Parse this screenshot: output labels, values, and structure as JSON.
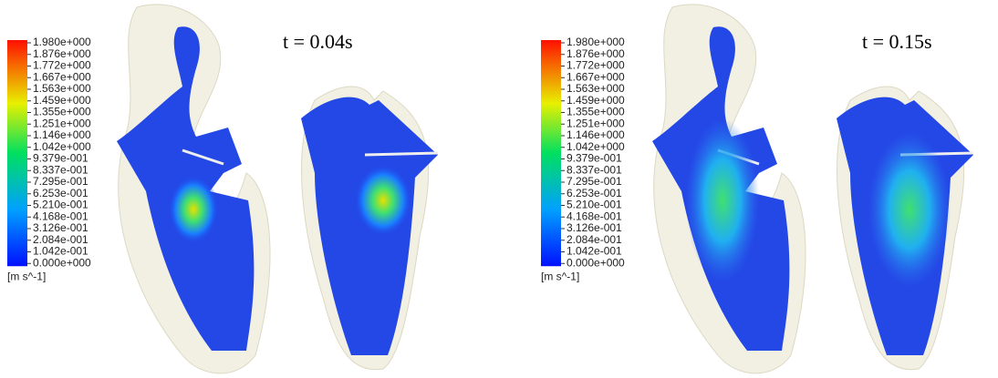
{
  "panels": [
    {
      "time": "t = 0.04s",
      "colorbar": {
        "labels": [
          "1.980e+000",
          "1.876e+000",
          "1.772e+000",
          "1.667e+000",
          "1.563e+000",
          "1.459e+000",
          "1.355e+000",
          "1.251e+000",
          "1.146e+000",
          "1.042e+000",
          "9.379e-001",
          "8.337e-001",
          "7.295e-001",
          "6.253e-001",
          "5.210e-001",
          "4.168e-001",
          "3.126e-001",
          "2.084e-001",
          "1.042e-001",
          "0.000e+000"
        ],
        "unit": "[m s^-1]"
      }
    },
    {
      "time": "t = 0.15s",
      "colorbar": {
        "labels": [
          "1.980e+000",
          "1.876e+000",
          "1.772e+000",
          "1.667e+000",
          "1.563e+000",
          "1.459e+000",
          "1.355e+000",
          "1.251e+000",
          "1.146e+000",
          "1.042e+000",
          "9.379e-001",
          "8.337e-001",
          "7.295e-001",
          "6.253e-001",
          "5.210e-001",
          "4.168e-001",
          "3.126e-001",
          "2.084e-001",
          "1.042e-001",
          "0.000e+000"
        ],
        "unit": "[m s^-1]"
      }
    }
  ]
}
